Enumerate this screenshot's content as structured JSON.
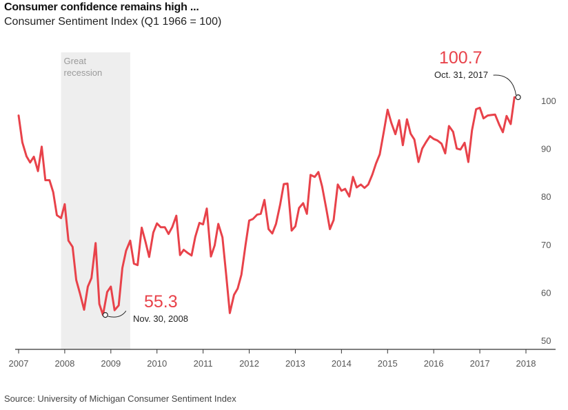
{
  "header": {
    "title": "Consumer confidence remains high ...",
    "subtitle": "Consumer Sentiment Index (Q1 1966 = 100)"
  },
  "footer": {
    "source": "Source: University of Michigan Consumer Sentiment Index"
  },
  "colors": {
    "line": "#e8424a",
    "band": "#eeeeee",
    "axis": "#333333"
  },
  "chart_data": {
    "type": "line",
    "title": "Consumer confidence remains high ...",
    "subtitle": "Consumer Sentiment Index (Q1 1966 = 100)",
    "xlim": [
      2007,
      2018
    ],
    "ylim": [
      50,
      100
    ],
    "x_ticks": [
      "2007",
      "2008",
      "2009",
      "2010",
      "2011",
      "2012",
      "2013",
      "2014",
      "2015",
      "2016",
      "2017",
      "2018"
    ],
    "y_ticks": [
      "50",
      "60",
      "70",
      "80",
      "90",
      "100"
    ],
    "y_axis_side": "right",
    "grid": false,
    "shaded_region": {
      "label_line1": "Great",
      "label_line2": "recession",
      "x_start": 2007.92,
      "x_end": 2009.42
    },
    "annotations": [
      {
        "value": "55.3",
        "date": "Nov. 30, 2008",
        "x": 2008.88,
        "y": 55.3
      },
      {
        "value": "100.7",
        "date": "Oct. 31, 2017",
        "x": 2017.83,
        "y": 100.7
      }
    ],
    "series": [
      {
        "values": [
          [
            2007.0,
            96.9
          ],
          [
            2007.08,
            91.3
          ],
          [
            2007.17,
            88.4
          ],
          [
            2007.25,
            87.1
          ],
          [
            2007.33,
            88.3
          ],
          [
            2007.42,
            85.3
          ],
          [
            2007.5,
            90.4
          ],
          [
            2007.58,
            83.4
          ],
          [
            2007.67,
            83.4
          ],
          [
            2007.75,
            80.9
          ],
          [
            2007.83,
            76.1
          ],
          [
            2007.92,
            75.5
          ],
          [
            2008.0,
            78.4
          ],
          [
            2008.08,
            70.8
          ],
          [
            2008.17,
            69.5
          ],
          [
            2008.25,
            62.6
          ],
          [
            2008.33,
            59.8
          ],
          [
            2008.42,
            56.4
          ],
          [
            2008.5,
            61.2
          ],
          [
            2008.58,
            63.0
          ],
          [
            2008.67,
            70.3
          ],
          [
            2008.75,
            57.6
          ],
          [
            2008.83,
            55.3
          ],
          [
            2008.92,
            60.1
          ],
          [
            2009.0,
            61.2
          ],
          [
            2009.08,
            56.3
          ],
          [
            2009.17,
            57.3
          ],
          [
            2009.25,
            65.1
          ],
          [
            2009.33,
            68.7
          ],
          [
            2009.42,
            70.8
          ],
          [
            2009.5,
            66.0
          ],
          [
            2009.58,
            65.7
          ],
          [
            2009.67,
            73.5
          ],
          [
            2009.75,
            70.6
          ],
          [
            2009.83,
            67.4
          ],
          [
            2009.92,
            72.5
          ],
          [
            2010.0,
            74.4
          ],
          [
            2010.08,
            73.6
          ],
          [
            2010.17,
            73.6
          ],
          [
            2010.25,
            72.2
          ],
          [
            2010.33,
            73.6
          ],
          [
            2010.42,
            76.0
          ],
          [
            2010.5,
            67.8
          ],
          [
            2010.58,
            68.9
          ],
          [
            2010.67,
            68.2
          ],
          [
            2010.75,
            67.7
          ],
          [
            2010.83,
            71.6
          ],
          [
            2010.92,
            74.5
          ],
          [
            2011.0,
            74.2
          ],
          [
            2011.08,
            77.5
          ],
          [
            2011.17,
            67.5
          ],
          [
            2011.25,
            69.8
          ],
          [
            2011.33,
            74.3
          ],
          [
            2011.42,
            71.5
          ],
          [
            2011.5,
            63.7
          ],
          [
            2011.58,
            55.7
          ],
          [
            2011.67,
            59.5
          ],
          [
            2011.75,
            60.8
          ],
          [
            2011.83,
            63.7
          ],
          [
            2011.92,
            69.9
          ],
          [
            2012.0,
            75.0
          ],
          [
            2012.08,
            75.3
          ],
          [
            2012.17,
            76.2
          ],
          [
            2012.25,
            76.4
          ],
          [
            2012.33,
            79.3
          ],
          [
            2012.42,
            73.2
          ],
          [
            2012.5,
            72.3
          ],
          [
            2012.58,
            74.3
          ],
          [
            2012.67,
            78.3
          ],
          [
            2012.75,
            82.6
          ],
          [
            2012.83,
            82.7
          ],
          [
            2012.92,
            72.9
          ],
          [
            2013.0,
            73.8
          ],
          [
            2013.08,
            77.6
          ],
          [
            2013.17,
            78.6
          ],
          [
            2013.25,
            76.4
          ],
          [
            2013.33,
            84.5
          ],
          [
            2013.42,
            84.1
          ],
          [
            2013.5,
            85.1
          ],
          [
            2013.58,
            82.1
          ],
          [
            2013.67,
            77.5
          ],
          [
            2013.75,
            73.2
          ],
          [
            2013.83,
            75.1
          ],
          [
            2013.92,
            82.5
          ],
          [
            2014.0,
            81.2
          ],
          [
            2014.08,
            81.6
          ],
          [
            2014.17,
            80.0
          ],
          [
            2014.25,
            84.1
          ],
          [
            2014.33,
            81.9
          ],
          [
            2014.42,
            82.5
          ],
          [
            2014.5,
            81.8
          ],
          [
            2014.58,
            82.5
          ],
          [
            2014.67,
            84.6
          ],
          [
            2014.75,
            86.9
          ],
          [
            2014.83,
            88.8
          ],
          [
            2014.92,
            93.6
          ],
          [
            2015.0,
            98.1
          ],
          [
            2015.08,
            95.4
          ],
          [
            2015.17,
            93.0
          ],
          [
            2015.25,
            95.9
          ],
          [
            2015.33,
            90.7
          ],
          [
            2015.42,
            96.1
          ],
          [
            2015.5,
            93.1
          ],
          [
            2015.58,
            91.9
          ],
          [
            2015.67,
            87.2
          ],
          [
            2015.75,
            90.0
          ],
          [
            2015.83,
            91.3
          ],
          [
            2015.92,
            92.6
          ],
          [
            2016.0,
            92.0
          ],
          [
            2016.08,
            91.7
          ],
          [
            2016.17,
            91.0
          ],
          [
            2016.25,
            89.0
          ],
          [
            2016.33,
            94.7
          ],
          [
            2016.42,
            93.5
          ],
          [
            2016.5,
            90.0
          ],
          [
            2016.58,
            89.8
          ],
          [
            2016.67,
            91.2
          ],
          [
            2016.75,
            87.2
          ],
          [
            2016.83,
            93.8
          ],
          [
            2016.92,
            98.2
          ],
          [
            2017.0,
            98.5
          ],
          [
            2017.08,
            96.3
          ],
          [
            2017.17,
            96.9
          ],
          [
            2017.25,
            97.0
          ],
          [
            2017.33,
            97.1
          ],
          [
            2017.42,
            95.0
          ],
          [
            2017.5,
            93.4
          ],
          [
            2017.58,
            96.8
          ],
          [
            2017.67,
            95.1
          ],
          [
            2017.75,
            100.7
          ]
        ]
      }
    ]
  }
}
